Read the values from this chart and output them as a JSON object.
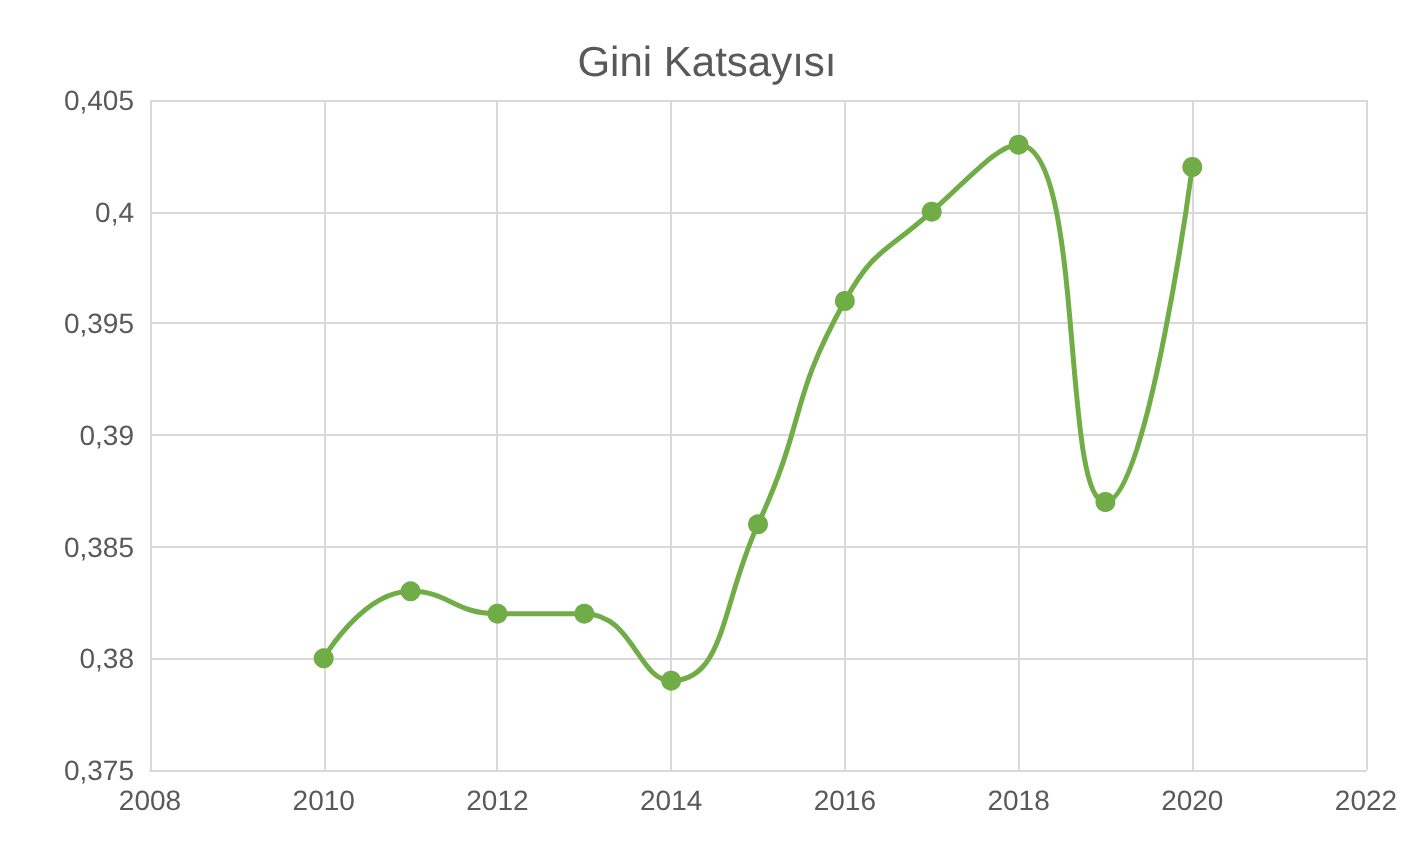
{
  "chart_data": {
    "type": "line",
    "title": "Gini Katsayısı",
    "x": [
      2010,
      2011,
      2012,
      2013,
      2014,
      2015,
      2016,
      2017,
      2018,
      2019,
      2020
    ],
    "series": [
      {
        "color": "#70ad47",
        "values": [
          0.38,
          0.383,
          0.382,
          0.382,
          0.379,
          0.386,
          0.396,
          0.4,
          0.403,
          0.387,
          0.402
        ]
      }
    ],
    "xlim": [
      2008,
      2022
    ],
    "xticks": [
      2008,
      2010,
      2012,
      2014,
      2016,
      2018,
      2020,
      2022
    ],
    "ylim": [
      0.375,
      0.405
    ],
    "yticks": [
      {
        "value": 0.375,
        "label": "0,375"
      },
      {
        "value": 0.38,
        "label": "0,38"
      },
      {
        "value": 0.385,
        "label": "0,385"
      },
      {
        "value": 0.39,
        "label": "0,39"
      },
      {
        "value": 0.395,
        "label": "0,395"
      },
      {
        "value": 0.4,
        "label": "0,4"
      },
      {
        "value": 0.405,
        "label": "0,405"
      }
    ],
    "grid": true,
    "marker": "circle",
    "line_style": "solid"
  }
}
